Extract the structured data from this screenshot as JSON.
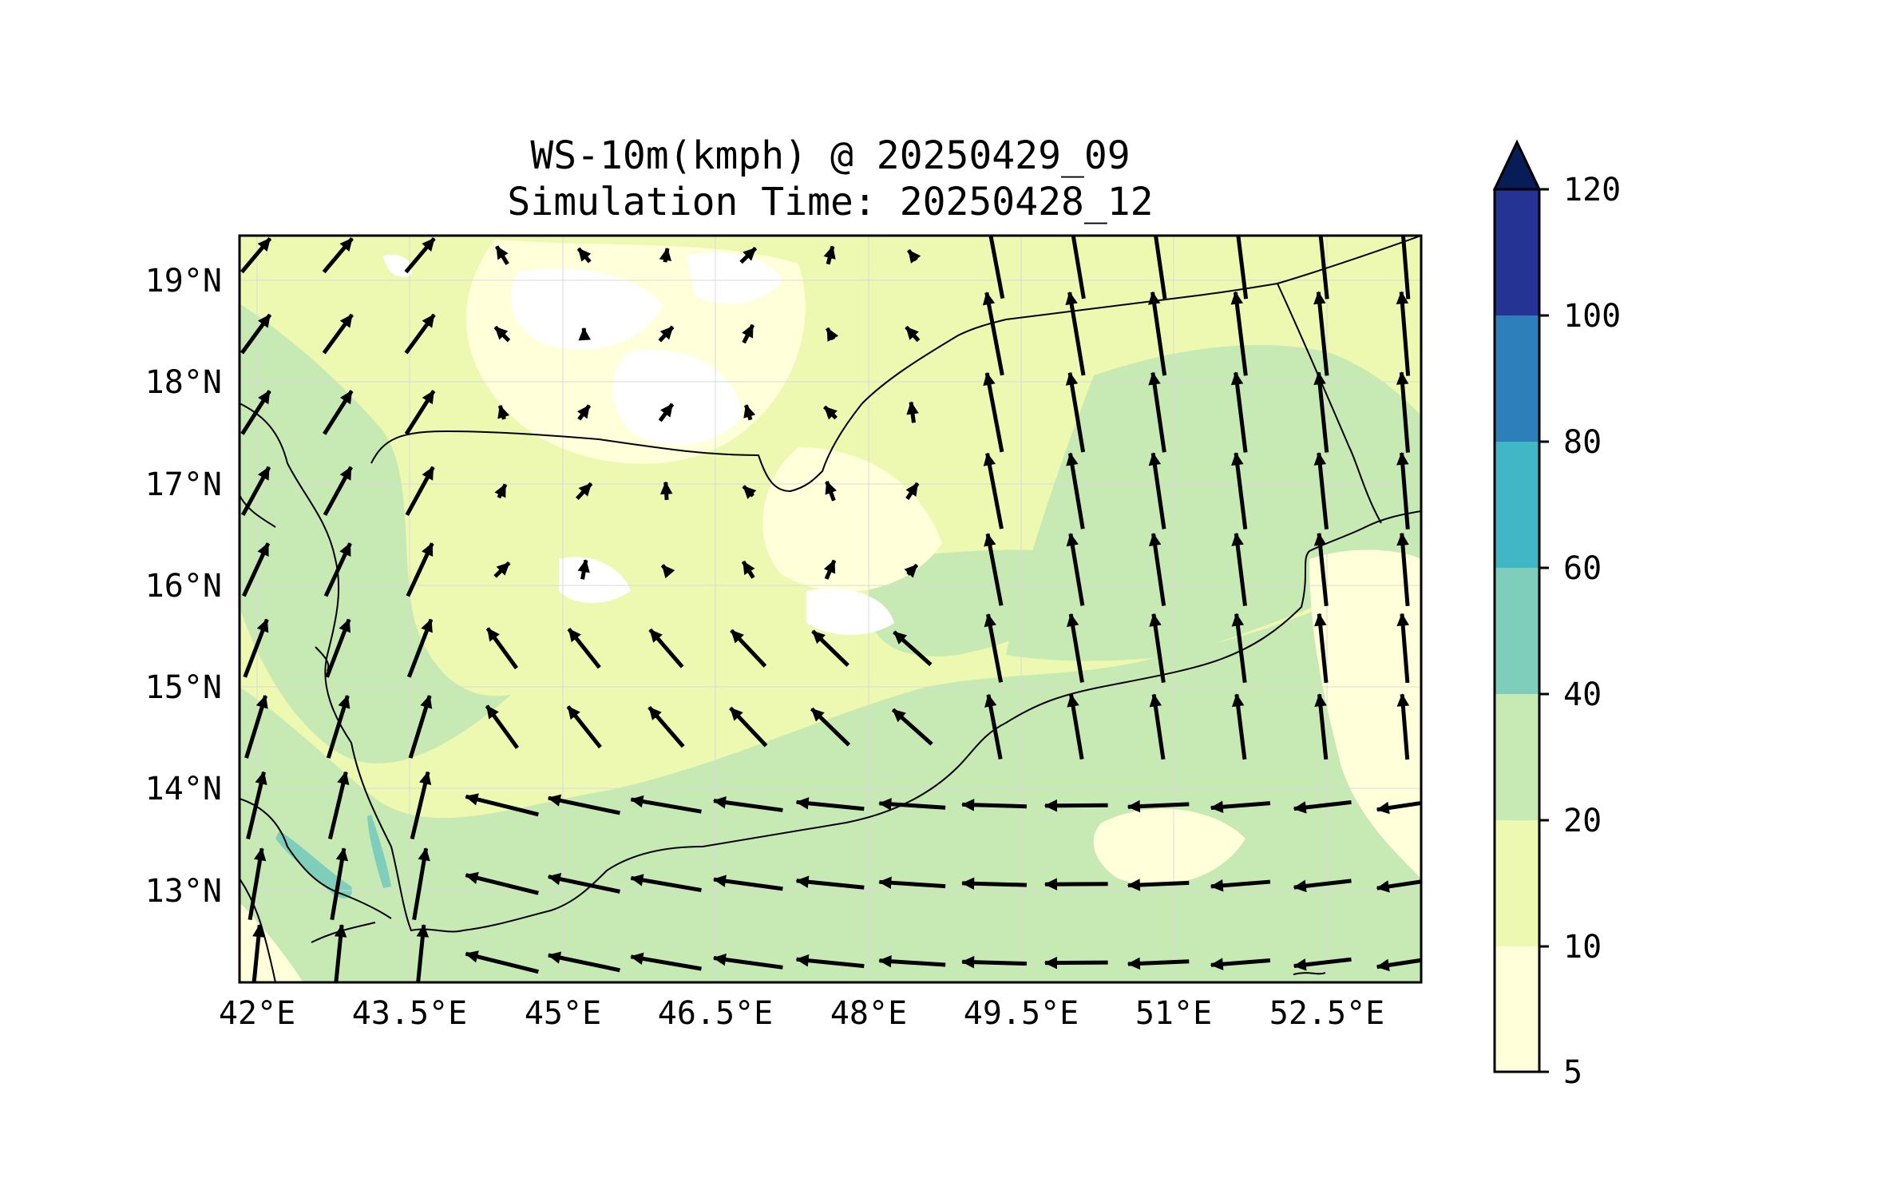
{
  "title": {
    "line1": "WS-10m(kmph) @ 20250429_09",
    "line2": "Simulation Time: 20250428_12"
  },
  "map": {
    "lon_ticks": [
      "42°E",
      "43.5°E",
      "45°E",
      "46.5°E",
      "48°E",
      "49.5°E",
      "51°E",
      "52.5°E"
    ],
    "lat_ticks": [
      "19°N",
      "18°N",
      "17°N",
      "16°N",
      "15°N",
      "14°N",
      "13°N"
    ],
    "lon_range": [
      41.9,
      53.5
    ],
    "lat_range": [
      12.1,
      19.45
    ]
  },
  "colorbar": {
    "levels": [
      "5",
      "10",
      "20",
      "40",
      "60",
      "80",
      "100",
      "120"
    ],
    "colors": [
      "#ffffd9",
      "#edf8b1",
      "#c7e9b4",
      "#7fcdbb",
      "#41b6c4",
      "#2c7fb8",
      "#253494",
      "#081d58"
    ],
    "extend": "max"
  },
  "colors": {
    "land_5_10": "#ffffd9",
    "land_10_20": "#edf8b1",
    "land_20_40": "#c7e9b4",
    "land_40_60": "#7fcdbb",
    "calm": "#ffffff",
    "vectors": "#000000"
  }
}
